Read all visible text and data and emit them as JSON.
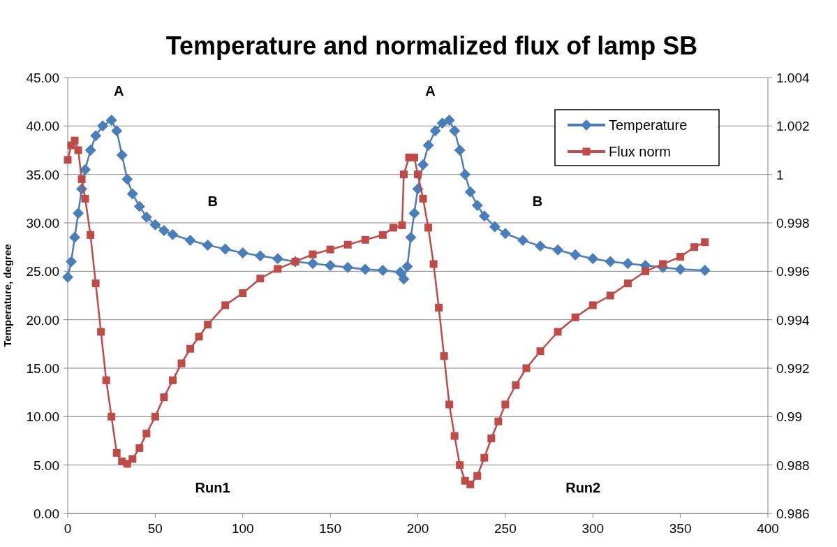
{
  "chart_data": {
    "type": "line",
    "title": "Temperature and normalized flux of lamp SB",
    "ylabel": "Temperature, degree",
    "xlim": [
      0,
      400
    ],
    "xticks": [
      0,
      50,
      100,
      150,
      200,
      250,
      300,
      350,
      400
    ],
    "ylim": [
      0,
      45
    ],
    "yticks": [
      {
        "value": 0,
        "label": "0.00"
      },
      {
        "value": 5,
        "label": "5.00"
      },
      {
        "value": 10,
        "label": "10.00"
      },
      {
        "value": 15,
        "label": "15.00"
      },
      {
        "value": 20,
        "label": "20.00"
      },
      {
        "value": 25,
        "label": "25.00"
      },
      {
        "value": 30,
        "label": "30.00"
      },
      {
        "value": 35,
        "label": "35.00"
      },
      {
        "value": 40,
        "label": "40.00"
      },
      {
        "value": 45,
        "label": "45.00"
      }
    ],
    "y2lim": [
      0.986,
      1.004
    ],
    "y2ticks": [
      0.986,
      0.988,
      0.99,
      0.992,
      0.994,
      0.996,
      0.998,
      1,
      1.002,
      1.004
    ],
    "grid": "y",
    "legend": "top right",
    "series": [
      {
        "name": "Temperature",
        "color": "#4a7ebb",
        "marker": "diamond",
        "x": [
          0,
          2,
          4,
          6,
          8,
          10,
          13,
          16,
          20,
          25,
          28,
          31,
          34,
          37,
          41,
          45,
          50,
          55,
          60,
          70,
          80,
          90,
          100,
          110,
          120,
          130,
          140,
          150,
          160,
          170,
          180,
          190,
          192,
          194,
          196,
          198,
          200,
          203,
          206,
          210,
          214,
          218,
          221,
          224,
          227,
          230,
          234,
          238,
          244,
          250,
          260,
          270,
          280,
          290,
          300,
          310,
          320,
          330,
          340,
          350,
          364
        ],
        "values": [
          24.4,
          26,
          28.5,
          31,
          33.5,
          35.5,
          37.5,
          39,
          40,
          40.6,
          39.5,
          37,
          34.5,
          33,
          31.7,
          30.6,
          29.8,
          29.2,
          28.8,
          28.2,
          27.7,
          27.3,
          26.9,
          26.6,
          26.3,
          26,
          25.8,
          25.6,
          25.4,
          25.2,
          25.1,
          24.9,
          24.2,
          25.5,
          28.5,
          31,
          33.5,
          36,
          38,
          39.5,
          40.3,
          40.6,
          39.5,
          37.5,
          35,
          33.2,
          31.8,
          30.7,
          29.6,
          28.9,
          28.2,
          27.6,
          27.2,
          26.7,
          26.3,
          26,
          25.8,
          25.6,
          25.4,
          25.2,
          25.1
        ]
      },
      {
        "name": "Flux norm",
        "color": "#be4b48",
        "marker": "square",
        "axis": "y2",
        "x": [
          0,
          2,
          4,
          6,
          8,
          10,
          13,
          16,
          19,
          22,
          25,
          28,
          31,
          34,
          37,
          41,
          45,
          50,
          55,
          60,
          65,
          70,
          75,
          80,
          90,
          100,
          110,
          120,
          130,
          140,
          150,
          160,
          170,
          180,
          186,
          191,
          192,
          195,
          198,
          200,
          203,
          206,
          209,
          212,
          215,
          218,
          221,
          224,
          227,
          230,
          234,
          238,
          242,
          246,
          250,
          256,
          262,
          270,
          280,
          290,
          300,
          310,
          320,
          330,
          340,
          350,
          358,
          364
        ],
        "values": [
          1.0006,
          1.0012,
          1.0014,
          1.001,
          0.9998,
          0.999,
          0.9975,
          0.9955,
          0.9935,
          0.9915,
          0.99,
          0.9885,
          0.98815,
          0.98805,
          0.98825,
          0.9887,
          0.9893,
          0.99,
          0.9908,
          0.9915,
          0.9922,
          0.9928,
          0.9933,
          0.9938,
          0.9946,
          0.9951,
          0.9957,
          0.9961,
          0.9964,
          0.9967,
          0.9969,
          0.9971,
          0.9973,
          0.9975,
          0.9978,
          0.9979,
          1,
          1.0007,
          1.0007,
          1,
          0.999,
          0.9978,
          0.9963,
          0.9945,
          0.9925,
          0.9905,
          0.9892,
          0.988,
          0.98735,
          0.9872,
          0.98755,
          0.9883,
          0.9891,
          0.9898,
          0.9905,
          0.9913,
          0.992,
          0.9927,
          0.9935,
          0.9941,
          0.9946,
          0.995,
          0.9955,
          0.996,
          0.9963,
          0.9966,
          0.997,
          0.9972
        ]
      }
    ],
    "annotations": [
      "A",
      "B",
      "Run1",
      "A",
      "B",
      "Run2"
    ]
  }
}
